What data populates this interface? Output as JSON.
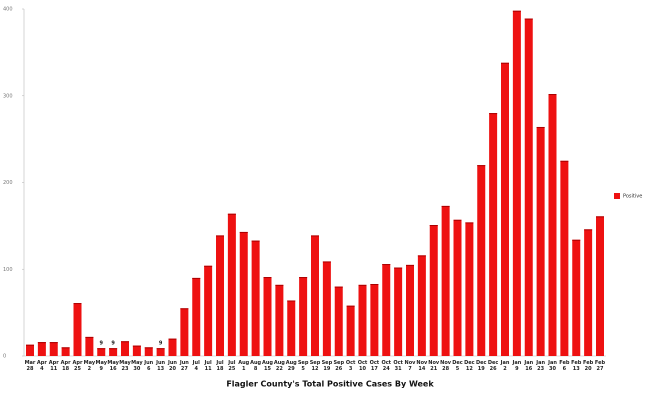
{
  "chart_data": {
    "type": "bar",
    "title": "Flagler County's Total Positive Cases By Week",
    "categories": [
      "Mar 28",
      "Apr 4",
      "Apr 11",
      "Apr 18",
      "Apr 25",
      "May 2",
      "May 9",
      "May 16",
      "May 23",
      "May 30",
      "Jun 6",
      "Jun 13",
      "Jun 20",
      "Jun 27",
      "Jul 4",
      "Jul 11",
      "Jul 18",
      "Jul 25",
      "Aug 1",
      "Aug 8",
      "Aug 15",
      "Aug 22",
      "Aug 29",
      "Sep 5",
      "Sep 12",
      "Sep 19",
      "Sep 26",
      "Oct 3",
      "Oct 10",
      "Oct 17",
      "Oct 24",
      "Oct 31",
      "Nov 7",
      "Nov 14",
      "Nov 21",
      "Nov 28",
      "Dec 5",
      "Dec 12",
      "Dec 19",
      "Dec 26",
      "Jan 2",
      "Jan 9",
      "Jan 16",
      "Jan 23",
      "Jan 30",
      "Feb 6",
      "Feb 13",
      "Feb 20",
      "Feb 27"
    ],
    "series": [
      {
        "name": "Positive",
        "color": "#ee1111",
        "values": [
          13,
          16,
          16,
          10,
          61,
          22,
          9,
          9,
          17,
          12,
          10,
          9,
          20,
          55,
          90,
          104,
          139,
          164,
          143,
          133,
          91,
          82,
          64,
          91,
          139,
          109,
          80,
          58,
          82,
          83,
          106,
          102,
          105,
          116,
          151,
          173,
          157,
          154,
          220,
          280,
          338,
          398,
          389,
          264,
          302,
          225,
          134,
          146,
          161
        ],
        "value_labels": [
          null,
          null,
          null,
          null,
          null,
          null,
          "9",
          "9",
          null,
          null,
          null,
          "9",
          null,
          null,
          null,
          null,
          null,
          null,
          null,
          null,
          null,
          null,
          null,
          null,
          null,
          null,
          null,
          null,
          null,
          null,
          null,
          null,
          null,
          null,
          null,
          null,
          null,
          null,
          null,
          null,
          null,
          null,
          null,
          null,
          null,
          null,
          null,
          null,
          null
        ]
      }
    ],
    "ylim": [
      0,
      400
    ],
    "yticks": [
      0,
      100,
      200,
      300,
      400
    ],
    "legend": "right"
  }
}
